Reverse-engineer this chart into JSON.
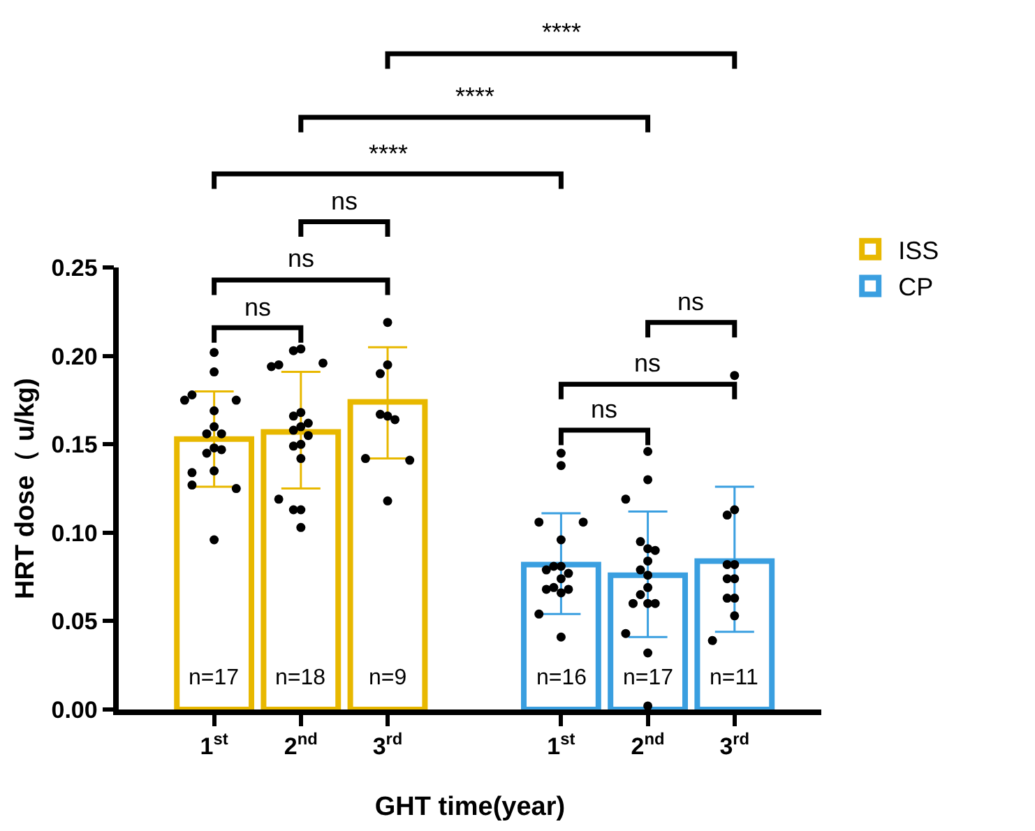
{
  "chart_data": {
    "type": "bar",
    "xlabel": "GHT time(year)",
    "ylabel": "HRT dose（ u/kg)",
    "categories": [
      "1$^{st}$",
      "2$^{nd}$",
      "3$^{rd}$",
      null,
      "1$^{st}$",
      "2$^{nd}$",
      "3$^{rd}$"
    ],
    "ylim": [
      0,
      0.25
    ],
    "yticks": [
      {
        "value": 0,
        "label": "0.00"
      },
      0.05,
      {
        "value": 0.1,
        "label": "0.10"
      },
      0.15,
      {
        "value": 0.2,
        "label": "0.20"
      },
      0.25
    ],
    "legend": "right",
    "series": [
      {
        "name": "ISS",
        "color": "#e8b800",
        "values": [
          0.153,
          0.157,
          0.174,
          null,
          null,
          null,
          null
        ],
        "errors": [
          [
            0.126,
            0.18
          ],
          [
            0.125,
            0.191
          ],
          [
            0.142,
            0.205
          ],
          null,
          null,
          null,
          null
        ]
      },
      {
        "name": "CP",
        "color": "#3a9fe0",
        "values": [
          null,
          null,
          null,
          null,
          0.082,
          0.076,
          0.084
        ],
        "errors": [
          null,
          null,
          null,
          null,
          [
            0.054,
            0.111
          ],
          [
            0.041,
            0.112
          ],
          [
            0.044,
            0.126
          ]
        ]
      },
      {
        "type": "scatter",
        "color": "#000000",
        "marker": "circle",
        "values": [
          0.202,
          0.204,
          0.219,
          null,
          0.145,
          0.146,
          0.189
        ]
      },
      {
        "type": "scatter",
        "color": "#000000",
        "marker": "circle",
        "values": [
          0.191,
          0.203,
          0.195,
          null,
          0.138,
          0.13,
          0.113
        ]
      },
      {
        "type": "scatter",
        "color": "#000000",
        "marker": "circle",
        "values": [
          0.178,
          0.195,
          0.19,
          null,
          0.106,
          0.119,
          0.11
        ]
      },
      {
        "type": "scatter",
        "color": "#000000",
        "marker": "circle",
        "values": [
          0.175,
          0.196,
          0.166,
          null,
          0.106,
          0.091,
          0.082
        ]
      },
      {
        "type": "scatter",
        "color": "#000000",
        "marker": "circle",
        "values": [
          0.175,
          0.194,
          0.167,
          null,
          0.096,
          0.095,
          0.082
        ]
      },
      {
        "type": "scatter",
        "color": "#000000",
        "marker": "circle",
        "values": [
          0.169,
          0.168,
          0.164,
          null,
          0.081,
          0.09,
          0.074
        ]
      },
      {
        "type": "scatter",
        "color": "#000000",
        "marker": "circle",
        "values": [
          0.16,
          0.166,
          0.142,
          null,
          0.081,
          0.084,
          0.074
        ]
      },
      {
        "type": "scatter",
        "color": "#000000",
        "marker": "circle",
        "values": [
          0.156,
          0.162,
          0.141,
          null,
          0.077,
          0.079,
          0.063
        ]
      },
      {
        "type": "scatter",
        "color": "#000000",
        "marker": "circle",
        "values": [
          0.156,
          0.16,
          0.118,
          null,
          0.079,
          0.076,
          0.063
        ]
      },
      {
        "type": "scatter",
        "color": "#000000",
        "marker": "circle",
        "values": [
          0.148,
          0.158,
          null,
          null,
          0.074,
          0.069,
          0.053
        ]
      },
      {
        "type": "scatter",
        "color": "#000000",
        "marker": "circle",
        "values": [
          0.145,
          0.155,
          null,
          null,
          0.066,
          0.065,
          0.039
        ]
      },
      {
        "type": "scatter",
        "color": "#000000",
        "marker": "circle",
        "values": [
          0.147,
          0.15,
          null,
          null,
          0.069,
          0.06,
          null
        ]
      },
      {
        "type": "scatter",
        "color": "#000000",
        "marker": "circle",
        "values": [
          0.134,
          0.149,
          null,
          null,
          0.068,
          0.06,
          null
        ]
      },
      {
        "type": "scatter",
        "color": "#000000",
        "marker": "circle",
        "values": [
          0.135,
          0.142,
          null,
          null,
          0.068,
          0.06,
          null
        ]
      },
      {
        "type": "scatter",
        "color": "#000000",
        "marker": "circle",
        "values": [
          0.127,
          0.119,
          null,
          null,
          0.054,
          0.043,
          null
        ]
      },
      {
        "type": "scatter",
        "color": "#000000",
        "marker": "circle",
        "values": [
          0.125,
          0.113,
          null,
          null,
          0.041,
          0.032,
          null
        ]
      },
      {
        "type": "scatter",
        "color": "#000000",
        "marker": "circle",
        "values": [
          0.096,
          0.113,
          null,
          null,
          null,
          0.002,
          null
        ]
      },
      {
        "type": "scatter",
        "color": "#000000",
        "marker": "circle",
        "values": [
          null,
          0.103,
          null,
          null,
          null,
          null,
          null
        ]
      }
    ],
    "annotations": [
      "n=17",
      "n=18",
      "n=9",
      "n=16",
      "n=17",
      "n=11",
      "ns",
      "ns",
      "ns",
      "****",
      "****",
      "****",
      "ns",
      "ns",
      "ns"
    ]
  }
}
